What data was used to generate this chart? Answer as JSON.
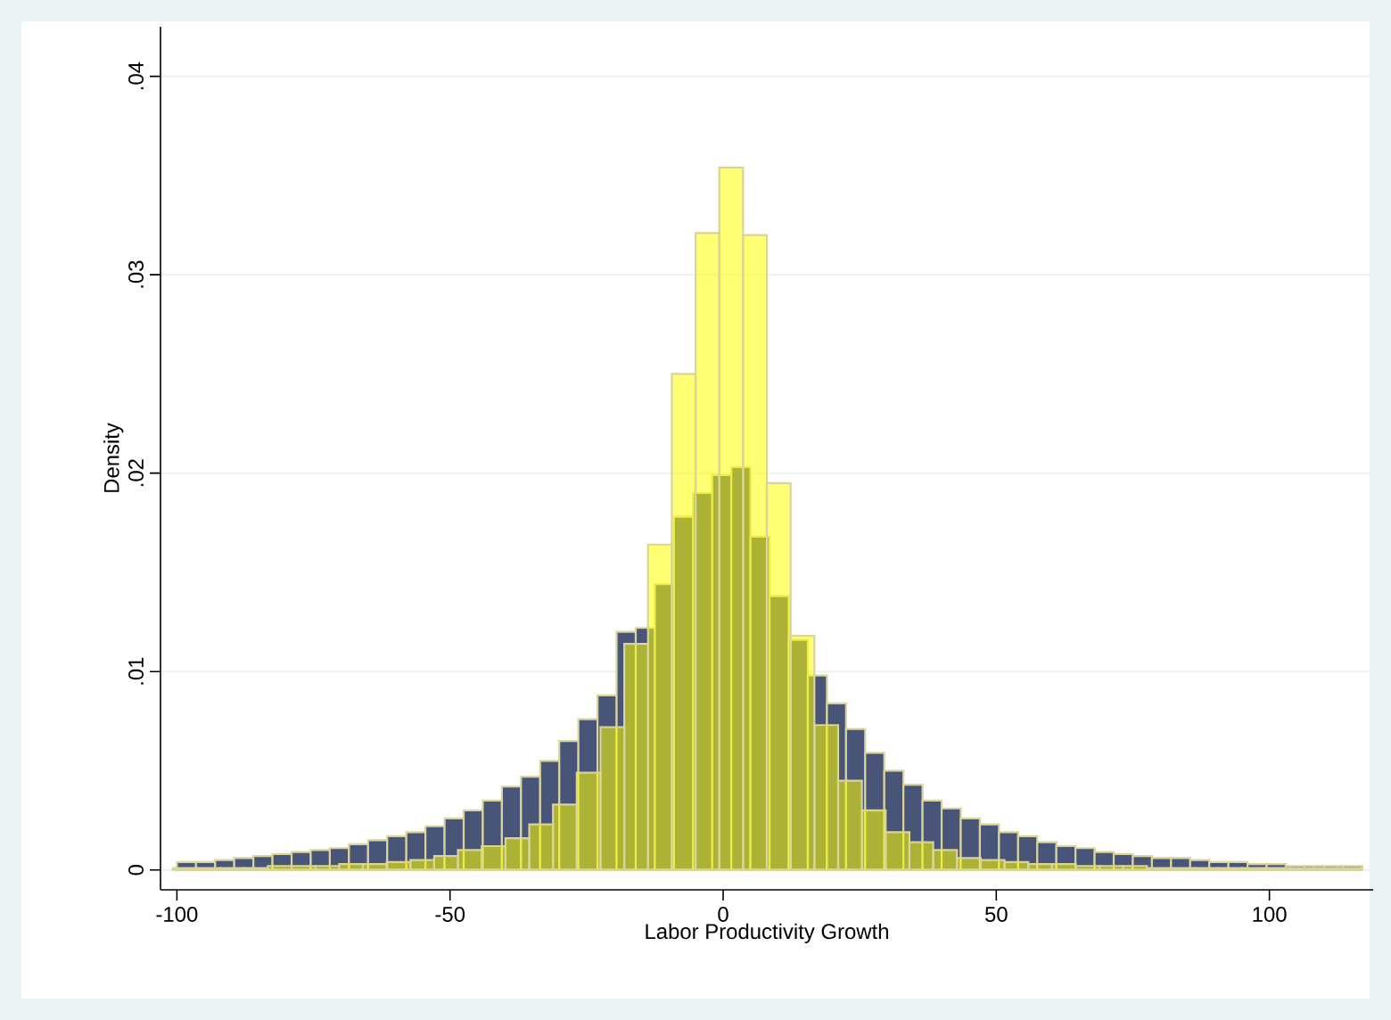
{
  "chart_data": {
    "type": "histogram",
    "xlabel": "Labor Productivity Growth",
    "ylabel": "Density",
    "xlim": [
      -103,
      119
    ],
    "ylim": [
      -0.001,
      0.0425
    ],
    "xticks": [
      -100,
      -50,
      0,
      50,
      100
    ],
    "yticks": [
      {
        "value": 0,
        "label": "0"
      },
      {
        "value": 0.01,
        "label": ".01"
      },
      {
        "value": 0.02,
        "label": ".02"
      },
      {
        "value": 0.03,
        "label": ".03"
      },
      {
        "value": 0.04,
        "label": ".04"
      }
    ],
    "grid": "y",
    "bins": [
      -100,
      -96.5,
      -93,
      -89.5,
      -86,
      -82.5,
      -79,
      -75.5,
      -72,
      -68.5,
      -65,
      -61.5,
      -58,
      -54.5,
      -51,
      -47.5,
      -44,
      -40.5,
      -37,
      -33.5,
      -30,
      -26.5,
      -23,
      -19.5,
      -16,
      -12.5,
      -9,
      -5.5,
      -2,
      1.5,
      5,
      8.5,
      12,
      15.5,
      19,
      22.5,
      26,
      29.5,
      33,
      36.5,
      40,
      43.5,
      47,
      50.5,
      54,
      57.5,
      61,
      64.5,
      68,
      71.5,
      75,
      78.5,
      82,
      85.5,
      89,
      92.5,
      96,
      99.5,
      103,
      106.5,
      110,
      113.5,
      117
    ],
    "series": [
      {
        "color": "#485478",
        "values": [
          0.0004,
          0.0004,
          0.0005,
          0.0006,
          0.0007,
          0.0008,
          0.0009,
          0.001,
          0.0011,
          0.0013,
          0.0015,
          0.0017,
          0.0019,
          0.0022,
          0.0026,
          0.003,
          0.0035,
          0.0042,
          0.0047,
          0.0055,
          0.0065,
          0.0076,
          0.0088,
          0.012,
          0.0122,
          0.0144,
          0.0178,
          0.019,
          0.0199,
          0.0203,
          0.0168,
          0.0138,
          0.0116,
          0.0098,
          0.0084,
          0.0071,
          0.0059,
          0.005,
          0.0043,
          0.0035,
          0.0031,
          0.0026,
          0.0023,
          0.0019,
          0.0017,
          0.0014,
          0.0012,
          0.0011,
          0.0009,
          0.0008,
          0.0007,
          0.0006,
          0.0006,
          0.0005,
          0.0004,
          0.0004,
          0.0003,
          0.0003,
          0.0002,
          0.0002,
          0.0002,
          0.0002
        ]
      },
      {
        "color": "#ffff00",
        "bins": [
          -100.75,
          -96.4,
          -92.05,
          -87.7,
          -83.35,
          -79,
          -74.65,
          -70.3,
          -65.95,
          -61.6,
          -57.25,
          -52.9,
          -48.55,
          -44.2,
          -39.85,
          -35.5,
          -31.15,
          -26.8,
          -22.45,
          -18.1,
          -13.75,
          -9.4,
          -5.05,
          -0.7,
          3.65,
          8,
          12.35,
          16.7,
          21.05,
          25.4,
          29.75,
          34.1,
          38.45,
          42.8,
          47.15,
          51.5,
          55.85,
          60.2,
          64.55,
          68.9,
          73.25,
          77.6,
          81.95,
          86.3,
          90.65,
          95,
          99.35,
          103.7,
          108.05,
          112.4,
          116.75
        ],
        "values": [
          0.0001,
          0.0001,
          0.0001,
          0.0001,
          0.0002,
          0.0002,
          0.0002,
          0.0003,
          0.0003,
          0.0004,
          0.0005,
          0.0007,
          0.001,
          0.0012,
          0.0016,
          0.0023,
          0.0033,
          0.0049,
          0.0072,
          0.0114,
          0.0164,
          0.025,
          0.0321,
          0.0354,
          0.032,
          0.0195,
          0.0118,
          0.0073,
          0.0045,
          0.003,
          0.0019,
          0.0014,
          0.001,
          0.0006,
          0.0005,
          0.0004,
          0.0003,
          0.0003,
          0.0002,
          0.0002,
          0.0002,
          0.0001,
          0.0001,
          0.0001,
          0.0001,
          0.0001,
          0.0001,
          0.0001,
          0.0001,
          0.0001
        ]
      }
    ]
  }
}
